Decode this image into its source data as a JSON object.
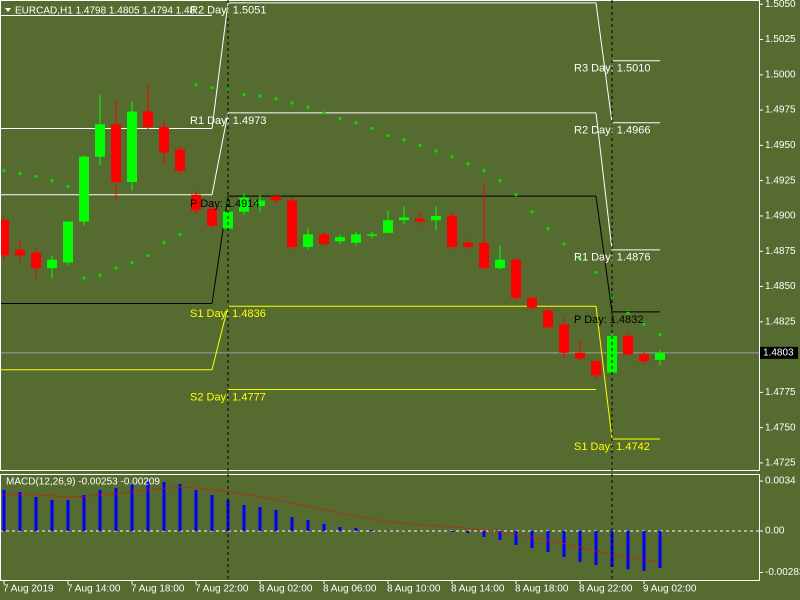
{
  "chart_data": [
    {
      "type": "candlestick",
      "title": "EURCAD,H1  1.4798 1.4805 1.4794 1.48",
      "categories": [
        "7 Aug 2019",
        null,
        null,
        null,
        "7 Aug 14:00",
        null,
        null,
        null,
        "7 Aug 18:00",
        null,
        null,
        null,
        "7 Aug 22:00",
        null,
        null,
        null,
        "8 Aug 02:00",
        null,
        null,
        null,
        "8 Aug 06:00",
        null,
        null,
        null,
        "8 Aug 10:00",
        null,
        null,
        null,
        "8 Aug 14:00",
        null,
        null,
        null,
        "8 Aug 18:00",
        null,
        null,
        null,
        "8 Aug 22:00",
        null,
        null,
        null,
        "9 Aug 02:00",
        null
      ],
      "open": [
        1.4897,
        1.4876,
        1.4874,
        1.4863,
        1.4867,
        1.4896,
        1.4942,
        1.4965,
        1.4924,
        1.4974,
        1.4963,
        1.4947,
        1.4915,
        1.4905,
        1.4891,
        1.4903,
        1.4907,
        1.4914,
        1.4911,
        1.4878,
        1.4887,
        1.4882,
        1.4881,
        1.4886,
        1.4888,
        1.4897,
        1.4898,
        1.4897,
        1.49,
        1.4881,
        1.4881,
        1.4863,
        1.4869,
        1.4842,
        1.4833,
        1.4823,
        1.4803,
        1.4797,
        1.4789,
        1.4815,
        1.4802,
        1.4798
      ],
      "high": [
        1.49,
        1.4883,
        1.4877,
        1.4872,
        1.4896,
        1.4943,
        1.4986,
        1.4982,
        1.4981,
        1.4994,
        1.4968,
        1.495,
        1.4918,
        1.4911,
        1.4913,
        1.4916,
        1.4915,
        1.4916,
        1.4913,
        1.4891,
        1.4889,
        1.4887,
        1.4889,
        1.4889,
        1.4904,
        1.4907,
        1.4903,
        1.4907,
        1.4903,
        1.4884,
        1.4923,
        1.4879,
        1.487,
        1.4844,
        1.4835,
        1.4828,
        1.4812,
        1.4798,
        1.4819,
        1.4819,
        1.4804,
        1.4805
      ],
      "low": [
        1.4868,
        1.4867,
        1.4855,
        1.4856,
        1.4865,
        1.4893,
        1.4936,
        1.4911,
        1.4918,
        1.4961,
        1.4936,
        1.4929,
        1.4901,
        1.4891,
        1.489,
        1.4901,
        1.4903,
        1.4909,
        1.4876,
        1.4876,
        1.4879,
        1.488,
        1.4879,
        1.4884,
        1.4888,
        1.4894,
        1.4893,
        1.489,
        1.4876,
        1.4876,
        1.4862,
        1.4862,
        1.484,
        1.4833,
        1.482,
        1.4799,
        1.4798,
        1.4784,
        1.4787,
        1.4801,
        1.4795,
        1.4794
      ],
      "close": [
        1.4872,
        1.4872,
        1.4863,
        1.4869,
        1.4896,
        1.4942,
        1.4965,
        1.4924,
        1.4974,
        1.4963,
        1.4945,
        1.4932,
        1.4904,
        1.4893,
        1.4903,
        1.4913,
        1.4911,
        1.4911,
        1.4878,
        1.4887,
        1.488,
        1.4885,
        1.4887,
        1.4887,
        1.4897,
        1.4899,
        1.4896,
        1.49,
        1.4878,
        1.4878,
        1.4863,
        1.4869,
        1.4842,
        1.4835,
        1.4821,
        1.4803,
        1.4799,
        1.4787,
        1.4815,
        1.4802,
        1.4797,
        1.4803
      ],
      "up_color": "#00ff00",
      "down_color": "#ff0000",
      "ylim": [
        1.472,
        1.5053
      ],
      "yticks": [
        {
          "value": 1.505,
          "label": "1.5050"
        },
        1.5025,
        {
          "value": 1.5,
          "label": "1.5000"
        },
        1.4975,
        {
          "value": 1.495,
          "label": "1.4950"
        },
        1.4925,
        {
          "value": 1.49,
          "label": "1.4900"
        },
        1.4875,
        {
          "value": 1.485,
          "label": "1.4850"
        },
        1.4825,
        1.4775,
        {
          "value": 1.475,
          "label": "1.4750"
        },
        1.4725
      ],
      "current_price": 1.4803,
      "sar": {
        "color": "#00e000",
        "values": [
          1.4932,
          1.493,
          1.4928,
          1.4925,
          1.4921,
          1.4856,
          1.4858,
          1.4863,
          1.4867,
          1.4872,
          1.4881,
          1.4887,
          1.4993,
          1.4991,
          1.4989,
          1.4986,
          1.4985,
          1.4983,
          1.498,
          1.4977,
          1.4973,
          1.4969,
          1.4966,
          1.4962,
          1.4957,
          1.4954,
          1.495,
          1.4946,
          1.4942,
          1.4937,
          1.4932,
          1.4925,
          1.4915,
          1.4903,
          1.4891,
          1.488,
          1.487,
          1.486,
          1.4843,
          1.4831,
          1.4823,
          1.4816
        ]
      },
      "pivots": [
        {
          "color": "#ffffff",
          "values": [
            1.5042,
            null,
            1.501
          ],
          "labels": [
            null,
            null,
            "R3 Day: 1.5010"
          ]
        },
        {
          "color": "#ffffff",
          "values": [
            1.4962,
            1.5051,
            1.4966
          ],
          "labels": [
            null,
            "R2 Day: 1.5051",
            "R2 Day: 1.4966"
          ]
        },
        {
          "color": "#ffffff",
          "values": [
            1.4915,
            1.4973,
            1.4876
          ],
          "labels": [
            null,
            "R1 Day: 1.4973",
            "R1 Day: 1.4876"
          ]
        },
        {
          "color": "#000000",
          "values": [
            1.4838,
            1.4914,
            1.4832
          ],
          "labels": [
            null,
            "P Day: 1.4914",
            "P Day: 1.4832"
          ]
        },
        {
          "color": "#ffff00",
          "values": [
            1.4791,
            1.4836,
            1.4742
          ],
          "labels": [
            null,
            "S1 Day: 1.4836",
            "S1 Day: 1.4742"
          ]
        },
        {
          "color": "#ffff00",
          "values": [
            null,
            1.4777,
            null
          ],
          "labels": [
            null,
            "S2 Day: 1.4777",
            null
          ]
        }
      ]
    },
    {
      "type": "macd",
      "title": "MACD(12,26,9) -0.00253 -0.00209",
      "histogram": {
        "color": "#0000ff",
        "values": [
          0.00279,
          0.00266,
          0.00232,
          0.00211,
          0.00211,
          0.00245,
          0.00279,
          0.00293,
          0.0032,
          0.00334,
          0.00334,
          0.0032,
          0.00279,
          0.00245,
          0.00211,
          0.00177,
          0.00163,
          0.00143,
          0.00095,
          0.00075,
          0.00048,
          0.00027,
          0.0002,
          7e-05,
          3e-05,
          1e-05,
          -1e-05,
          1e-05,
          -7e-05,
          -0.00014,
          -0.00041,
          -0.00061,
          -0.00095,
          -0.00116,
          -0.00143,
          -0.00177,
          -0.00211,
          -0.00232,
          -0.00245,
          -0.00262,
          -0.00272,
          -0.00253
        ]
      },
      "signal": {
        "color": "#ff0000",
        "values": [
          0.00245,
          0.00249,
          0.00246,
          0.00239,
          0.00233,
          0.00235,
          0.00244,
          0.00254,
          0.00267,
          0.00281,
          0.00291,
          0.00297,
          0.00293,
          0.00283,
          0.00269,
          0.0025,
          0.00233,
          0.00215,
          0.00191,
          0.00168,
          0.00144,
          0.00121,
          0.00101,
          0.00082,
          0.00066,
          0.00053,
          0.00042,
          0.00034,
          0.00026,
          0.00018,
          6e-05,
          -7e-05,
          -0.00025,
          -0.00043,
          -0.00063,
          -0.00086,
          -0.00111,
          -0.00135,
          -0.00159,
          -0.0018,
          -0.00198,
          -0.00209
        ]
      },
      "ylim": [
        -0.00334,
        0.00388
      ],
      "yticks": [
        0.0034,
        {
          "value": 0,
          "label": "0.00"
        },
        -0.00283
      ]
    }
  ]
}
